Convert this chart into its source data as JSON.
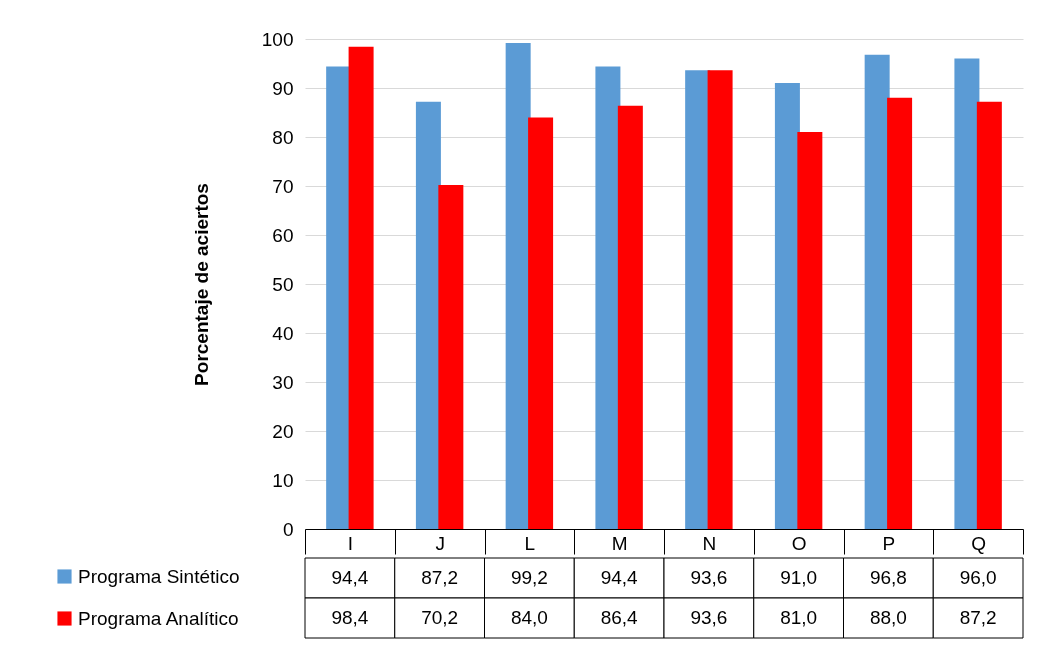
{
  "chart_data": {
    "type": "bar",
    "ylabel": "Porcentaje de aciertos",
    "categories": [
      "I",
      "J",
      "L",
      "M",
      "N",
      "O",
      "P",
      "Q"
    ],
    "series": [
      {
        "name": "Programa Sintético",
        "color": "#5b9bd5",
        "values": [
          94.4,
          87.2,
          99.2,
          94.4,
          93.6,
          91.0,
          96.8,
          96.0
        ],
        "value_labels": [
          "94,4",
          "87,2",
          "99,2",
          "94,4",
          "93,6",
          "91,0",
          "96,8",
          "96,0"
        ]
      },
      {
        "name": "Programa Analítico",
        "color": "#ff0000",
        "values": [
          98.4,
          70.2,
          84.0,
          86.4,
          93.6,
          81.0,
          88.0,
          87.2
        ],
        "value_labels": [
          "98,4",
          "70,2",
          "84,0",
          "86,4",
          "93,6",
          "81,0",
          "88,0",
          "87,2"
        ]
      }
    ],
    "ylim": [
      0,
      100
    ],
    "yticks": [
      0,
      10,
      20,
      30,
      40,
      50,
      60,
      70,
      80,
      90,
      100
    ],
    "grid": "y",
    "legend": "bottom left"
  }
}
